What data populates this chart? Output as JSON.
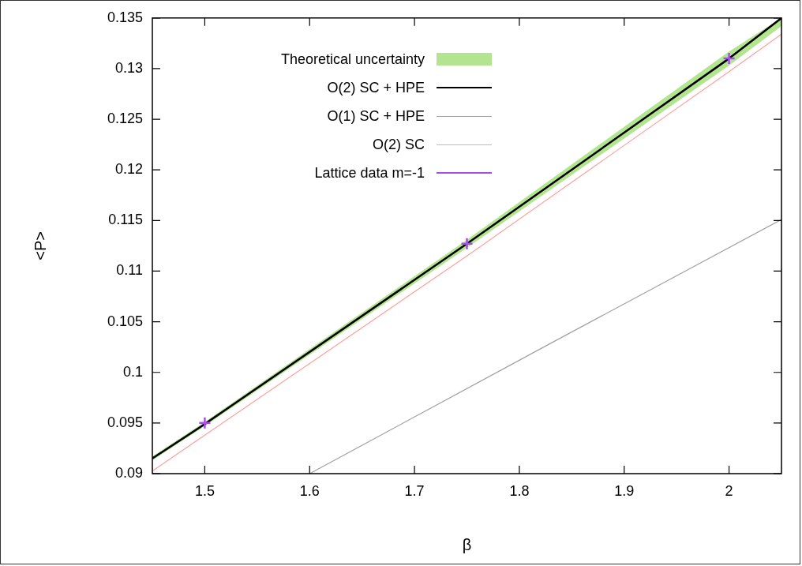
{
  "chart_data": {
    "type": "line",
    "xlabel": "β",
    "ylabel": "<P>",
    "xlim": [
      1.45,
      2.05
    ],
    "ylim": [
      0.09,
      0.135
    ],
    "xticks": [
      1.5,
      1.6,
      1.7,
      1.8,
      1.9,
      2
    ],
    "yticks": [
      0.09,
      0.095,
      0.1,
      0.105,
      0.11,
      0.115,
      0.12,
      0.125,
      0.13,
      0.135
    ],
    "grid": false,
    "legend": "top left",
    "line_style": "solid",
    "series": [
      {
        "name": "Theoretical uncertainty",
        "type": "area",
        "color": "#b3e48f"
      },
      {
        "name": "O(2) SC + HPE",
        "color": "#000000",
        "x": [
          1.45,
          1.5,
          1.75,
          2.0,
          2.05
        ],
        "values": [
          0.0915,
          0.0949,
          0.1127,
          0.131,
          0.135
        ],
        "lower": [
          0.0913,
          0.0947,
          0.1123,
          0.1303,
          0.1342
        ],
        "upper": [
          0.0917,
          0.0951,
          0.1131,
          0.1317,
          0.135
        ]
      },
      {
        "name": "O(1) SC + HPE",
        "color": "#a0a0a0",
        "x": [
          1.6,
          1.825,
          2.05
        ],
        "values": [
          0.09,
          0.1026,
          0.1151
        ]
      },
      {
        "name": "O(2) SC",
        "color": "#ffa0a0",
        "x": [
          1.45,
          1.5,
          1.75,
          2.0,
          2.05
        ],
        "values": [
          0.09025,
          0.0938,
          0.1115,
          0.1297,
          0.1334
        ]
      },
      {
        "name": "Lattice data m=-1",
        "type": "scatter",
        "marker": "cross",
        "color": "#a64ee6",
        "x": [
          1.5,
          1.75,
          2.0
        ],
        "values": [
          0.095,
          0.1127,
          0.131
        ]
      }
    ]
  }
}
